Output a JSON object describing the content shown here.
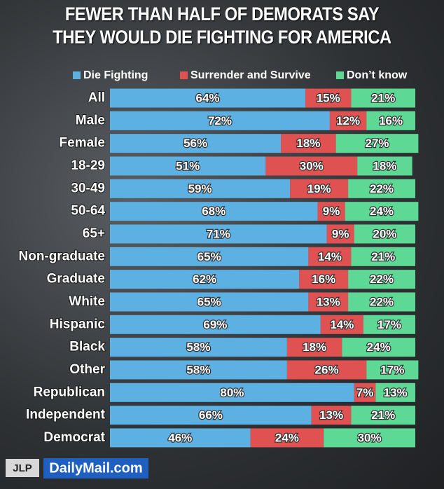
{
  "chart_data": {
    "type": "stacked-bar-horizontal",
    "title": "FEWER THAN HALF OF DEMORATS SAY\nTHEY WOULD DIE FIGHTING FOR AMERICA",
    "categories": [
      "All",
      "Male",
      "Female",
      "18-29",
      "30-49",
      "50-64",
      "65+",
      "Non-graduate",
      "Graduate",
      "White",
      "Hispanic",
      "Black",
      "Other",
      "Republican",
      "Independent",
      "Democrat"
    ],
    "series": [
      {
        "name": "Die Fighting",
        "color": "#5cb0e2",
        "values": [
          64,
          72,
          56,
          51,
          59,
          68,
          71,
          65,
          62,
          65,
          69,
          58,
          58,
          80,
          66,
          46
        ],
        "value_labels": [
          "64%",
          "72%",
          "56%",
          "51%",
          "59%",
          "68%",
          "71%",
          "65%",
          "62%",
          "65%",
          "69%",
          "58%",
          "58%",
          "80%",
          "66%",
          "46%"
        ]
      },
      {
        "name": "Surrender and Survive",
        "color": "#e05252",
        "values": [
          15,
          12,
          18,
          30,
          19,
          9,
          9,
          14,
          16,
          13,
          14,
          18,
          26,
          7,
          13,
          24
        ],
        "value_labels": [
          "15%",
          "12%",
          "18%",
          "30%",
          "19%",
          "9%",
          "9%",
          "14%",
          "16%",
          "13%",
          "14%",
          "18%",
          "26%",
          "7%",
          "13%",
          "24%"
        ]
      },
      {
        "name": "Don’t know",
        "color": "#5ed995",
        "values": [
          21,
          16,
          27,
          18,
          22,
          24,
          20,
          21,
          22,
          22,
          17,
          24,
          17,
          13,
          21,
          30
        ],
        "value_labels": [
          "21%",
          "16%",
          "27%",
          "18%",
          "22%",
          "24%",
          "20%",
          "21%",
          "22%",
          "22%",
          "17%",
          "24%",
          "17%",
          "13%",
          "21%",
          "30%"
        ]
      }
    ],
    "xlim": [
      0,
      100
    ],
    "annotations": [
      "JLP",
      "DailyMail.com"
    ]
  }
}
